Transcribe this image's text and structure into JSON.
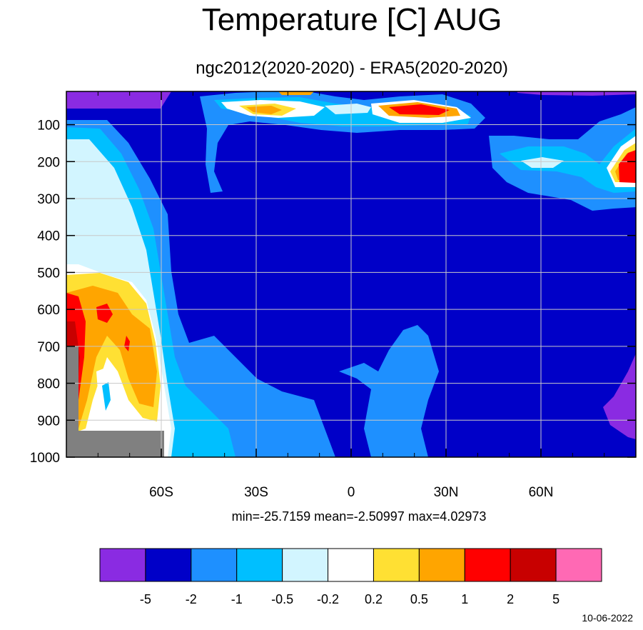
{
  "chart_data": {
    "type": "heatmap",
    "title": "Temperature [C] AUG",
    "subtitle": "ngc2012(2020-2020) - ERA5(2020-2020)",
    "x_ticks": [
      {
        "value": -60,
        "label": "60S"
      },
      {
        "value": -30,
        "label": "30S"
      },
      {
        "value": 0,
        "label": "0"
      },
      {
        "value": 30,
        "label": "30N"
      },
      {
        "value": 60,
        "label": "60N"
      }
    ],
    "y_ticks": [
      {
        "value": 100,
        "label": "100"
      },
      {
        "value": 200,
        "label": "200"
      },
      {
        "value": 300,
        "label": "300"
      },
      {
        "value": 400,
        "label": "400"
      },
      {
        "value": 500,
        "label": "500"
      },
      {
        "value": 600,
        "label": "600"
      },
      {
        "value": 700,
        "label": "700"
      },
      {
        "value": 800,
        "label": "800"
      },
      {
        "value": 900,
        "label": "900"
      },
      {
        "value": 1000,
        "label": "1000"
      }
    ],
    "xlim": [
      -90,
      90
    ],
    "ylim": [
      10,
      1000
    ],
    "y_inverted": true,
    "grid": true,
    "stats": {
      "min": "-25.7159",
      "mean": "-2.50997",
      "max": "4.02973"
    },
    "stats_text": "min=-25.7159   mean=-2.50997   max=4.02973",
    "colorbar": {
      "colors": [
        "#8a2be2",
        "#0000c8",
        "#1e90ff",
        "#00bfff",
        "#d2f5ff",
        "#ffffff",
        "#ffe033",
        "#ffa500",
        "#ff0000",
        "#c80000",
        "#ff69b4"
      ],
      "labels": [
        "-5",
        "-2",
        "-1",
        "-0.5",
        "-0.2",
        "0.2",
        "0.5",
        "1",
        "2",
        "5"
      ]
    },
    "date": "10-06-2022"
  }
}
